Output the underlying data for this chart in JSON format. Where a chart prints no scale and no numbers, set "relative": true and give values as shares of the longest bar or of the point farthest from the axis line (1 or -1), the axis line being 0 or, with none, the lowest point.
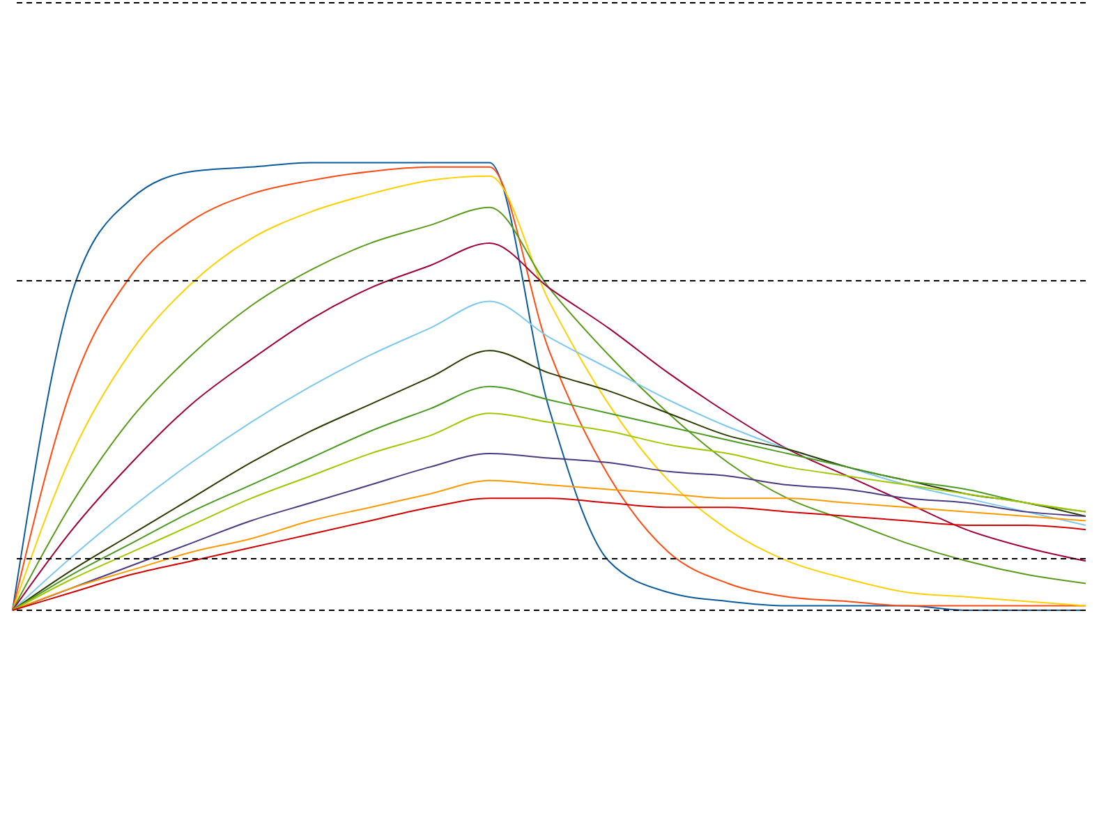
{
  "chart_data": {
    "type": "line",
    "relative": true,
    "legend": false,
    "marker": "none",
    "line_style": "solid",
    "categories": [
      null,
      null,
      null,
      null,
      null,
      null,
      null,
      null,
      null,
      null,
      null,
      null,
      null,
      null,
      null,
      null,
      null,
      null,
      null
    ],
    "ref_lines": [
      {
        "axis": "y",
        "value": 1.357,
        "color": "#000000",
        "line_style": "dashed"
      },
      {
        "axis": "y",
        "value": 0.736,
        "color": "#000000",
        "line_style": "dashed"
      },
      {
        "axis": "y",
        "value": 0.115,
        "color": "#000000",
        "line_style": "dashed"
      },
      {
        "axis": "y",
        "value": 0,
        "color": "#000000",
        "line_style": "dashed"
      }
    ],
    "series": [
      {
        "color": "#0a5a9c",
        "values": [
          0,
          0.71,
          0.92,
          0.98,
          0.99,
          1.0,
          1.0,
          1.0,
          1.0,
          0.45,
          0.11,
          0.04,
          0.02,
          0.01,
          0.01,
          0.01,
          0,
          0,
          0
        ]
      },
      {
        "color": "#ff4a10",
        "values": [
          0,
          0.5,
          0.75,
          0.87,
          0.93,
          0.96,
          0.98,
          0.99,
          0.99,
          0.58,
          0.3,
          0.13,
          0.06,
          0.03,
          0.02,
          0.01,
          0.01,
          0.01,
          0.01
        ]
      },
      {
        "color": "#ffd000",
        "values": [
          0,
          0.35,
          0.58,
          0.73,
          0.83,
          0.89,
          0.93,
          0.96,
          0.97,
          0.69,
          0.46,
          0.29,
          0.18,
          0.11,
          0.07,
          0.04,
          0.03,
          0.02,
          0.01
        ]
      },
      {
        "color": "#5a9a1a",
        "values": [
          0,
          0.24,
          0.43,
          0.57,
          0.68,
          0.76,
          0.82,
          0.86,
          0.9,
          0.72,
          0.57,
          0.44,
          0.33,
          0.25,
          0.2,
          0.15,
          0.11,
          0.08,
          0.06
        ]
      },
      {
        "color": "#a0003a",
        "values": [
          0,
          0.18,
          0.33,
          0.46,
          0.56,
          0.65,
          0.72,
          0.77,
          0.82,
          0.72,
          0.63,
          0.53,
          0.44,
          0.36,
          0.3,
          0.24,
          0.18,
          0.14,
          0.11
        ]
      },
      {
        "color": "#7ec8f0",
        "values": [
          0,
          0.12,
          0.23,
          0.33,
          0.42,
          0.5,
          0.57,
          0.63,
          0.69,
          0.61,
          0.54,
          0.47,
          0.41,
          0.36,
          0.32,
          0.28,
          0.25,
          0.22,
          0.19
        ]
      },
      {
        "color": "#2a3a00",
        "values": [
          0,
          0.09,
          0.17,
          0.25,
          0.33,
          0.4,
          0.46,
          0.52,
          0.58,
          0.53,
          0.49,
          0.44,
          0.39,
          0.36,
          0.32,
          0.29,
          0.26,
          0.24,
          0.21
        ]
      },
      {
        "color": "#4a9a20",
        "values": [
          0,
          0.08,
          0.15,
          0.22,
          0.28,
          0.34,
          0.4,
          0.45,
          0.5,
          0.47,
          0.44,
          0.41,
          0.38,
          0.35,
          0.32,
          0.29,
          0.27,
          0.24,
          0.22
        ]
      },
      {
        "color": "#a0c800",
        "values": [
          0,
          0.07,
          0.13,
          0.19,
          0.25,
          0.3,
          0.35,
          0.39,
          0.44,
          0.42,
          0.4,
          0.37,
          0.35,
          0.32,
          0.3,
          0.28,
          0.26,
          0.24,
          0.22
        ]
      },
      {
        "color": "#4a3a80",
        "values": [
          0,
          0.05,
          0.1,
          0.15,
          0.2,
          0.24,
          0.28,
          0.32,
          0.35,
          0.34,
          0.33,
          0.31,
          0.3,
          0.28,
          0.27,
          0.25,
          0.24,
          0.22,
          0.21
        ]
      },
      {
        "color": "#ff9900",
        "values": [
          0,
          0.05,
          0.09,
          0.13,
          0.16,
          0.2,
          0.23,
          0.26,
          0.29,
          0.28,
          0.27,
          0.26,
          0.25,
          0.25,
          0.24,
          0.23,
          0.22,
          0.21,
          0.2
        ]
      },
      {
        "color": "#d00000",
        "values": [
          0,
          0.04,
          0.08,
          0.11,
          0.14,
          0.17,
          0.2,
          0.23,
          0.25,
          0.25,
          0.24,
          0.23,
          0.23,
          0.22,
          0.21,
          0.2,
          0.19,
          0.19,
          0.18
        ]
      }
    ]
  }
}
